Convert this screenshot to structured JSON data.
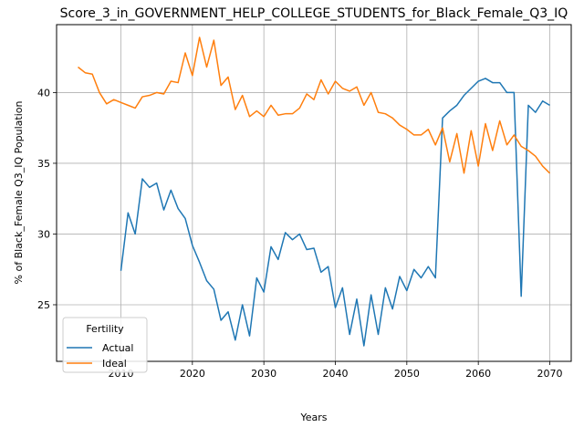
{
  "chart_data": {
    "type": "line",
    "title": "Score_3_in_GOVERNMENT_HELP_COLLEGE_STUDENTS_for_Black_Female_Q3_IQ",
    "xlabel": "Years",
    "ylabel": "% of Black_Female Q3_IQ Population",
    "xlim": [
      2001,
      2073
    ],
    "ylim": [
      21.0,
      44.8
    ],
    "xticks": [
      2010,
      2020,
      2030,
      2040,
      2050,
      2060,
      2070
    ],
    "yticks": [
      25,
      30,
      35,
      40
    ],
    "grid": true,
    "legend": {
      "title": "Fertility",
      "placement": "lower-left",
      "entries": [
        "Actual",
        "Ideal"
      ]
    },
    "series": [
      {
        "name": "Actual",
        "color": "#1f77b4",
        "x": [
          2010,
          2011,
          2012,
          2013,
          2014,
          2015,
          2016,
          2017,
          2018,
          2019,
          2020,
          2021,
          2022,
          2023,
          2024,
          2025,
          2026,
          2027,
          2028,
          2029,
          2030,
          2031,
          2032,
          2033,
          2034,
          2035,
          2036,
          2037,
          2038,
          2039,
          2040,
          2041,
          2042,
          2043,
          2044,
          2045,
          2046,
          2047,
          2048,
          2049,
          2050,
          2051,
          2052,
          2053,
          2054,
          2055,
          2056,
          2057,
          2058,
          2059,
          2060,
          2061,
          2062,
          2063,
          2064,
          2065,
          2066,
          2067,
          2068,
          2069,
          2070
        ],
        "values": [
          27.4,
          31.5,
          30.0,
          33.9,
          33.3,
          33.6,
          31.7,
          33.1,
          31.8,
          31.1,
          29.2,
          28.0,
          26.7,
          26.1,
          23.9,
          24.5,
          22.5,
          25.0,
          22.8,
          26.9,
          25.9,
          29.1,
          28.2,
          30.1,
          29.6,
          30.0,
          28.9,
          29.0,
          27.3,
          27.7,
          24.8,
          26.2,
          22.9,
          25.4,
          22.1,
          25.7,
          22.9,
          26.2,
          24.7,
          27.0,
          26.0,
          27.5,
          26.9,
          27.7,
          26.9,
          38.2,
          38.7,
          39.1,
          39.8,
          40.3,
          40.8,
          41.0,
          40.7,
          40.7,
          40.0,
          40.0,
          25.6,
          39.1,
          38.6,
          39.4,
          39.1
        ]
      },
      {
        "name": "Ideal",
        "color": "#ff7f0e",
        "x": [
          2004,
          2005,
          2006,
          2007,
          2008,
          2009,
          2010,
          2011,
          2012,
          2013,
          2014,
          2015,
          2016,
          2017,
          2018,
          2019,
          2020,
          2021,
          2022,
          2023,
          2024,
          2025,
          2026,
          2027,
          2028,
          2029,
          2030,
          2031,
          2032,
          2033,
          2034,
          2035,
          2036,
          2037,
          2038,
          2039,
          2040,
          2041,
          2042,
          2043,
          2044,
          2045,
          2046,
          2047,
          2048,
          2049,
          2050,
          2051,
          2052,
          2053,
          2054,
          2055,
          2056,
          2057,
          2058,
          2059,
          2060,
          2061,
          2062,
          2063,
          2064,
          2065,
          2066,
          2067,
          2068,
          2069,
          2070
        ],
        "values": [
          41.8,
          41.4,
          41.3,
          40.0,
          39.2,
          39.5,
          39.3,
          39.1,
          38.9,
          39.7,
          39.8,
          40.0,
          39.9,
          40.8,
          40.7,
          42.8,
          41.2,
          43.9,
          41.8,
          43.7,
          40.5,
          41.1,
          38.8,
          39.8,
          38.3,
          38.7,
          38.3,
          39.1,
          38.4,
          38.5,
          38.5,
          38.9,
          39.9,
          39.5,
          40.9,
          39.9,
          40.8,
          40.3,
          40.1,
          40.4,
          39.1,
          40.0,
          38.6,
          38.5,
          38.2,
          37.7,
          37.4,
          37.0,
          37.0,
          37.4,
          36.3,
          37.5,
          35.1,
          37.1,
          34.3,
          37.3,
          34.8,
          37.8,
          35.9,
          38.0,
          36.3,
          37.0,
          36.2,
          35.9,
          35.5,
          34.8,
          34.3
        ]
      }
    ]
  }
}
